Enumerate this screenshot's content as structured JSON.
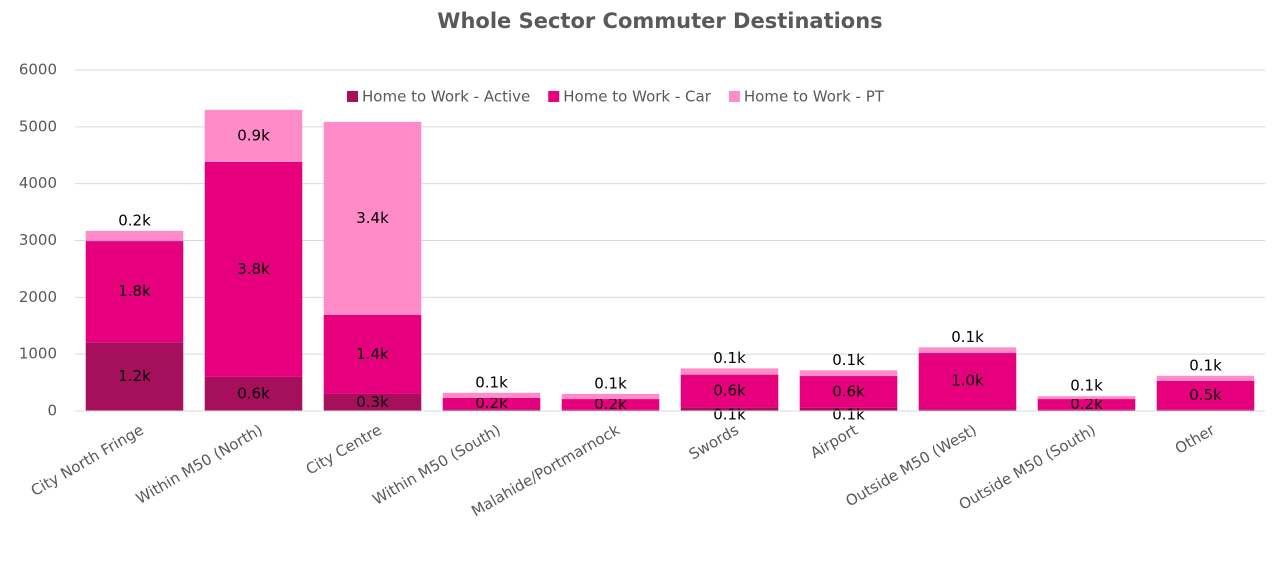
{
  "chart_data": {
    "type": "stacked_bar",
    "title": "Whole Sector Commuter Destinations",
    "categories": [
      "City North Fringe",
      "Within M50 (North)",
      "City Centre",
      "Within M50 (South)",
      "Malahide/Portmarnock",
      "Swords",
      "Airport",
      "Outside M50 (West)",
      "Outside M50 (South)",
      "Other"
    ],
    "series": [
      {
        "name": "Home to Work - Active",
        "color": "#a50f5c",
        "values": [
          1210,
          600,
          300,
          30,
          20,
          60,
          55,
          30,
          20,
          20
        ],
        "value_labels": [
          "1.2k",
          "0.6k",
          "0.3k",
          null,
          null,
          "0.1k",
          "0.1k",
          null,
          null,
          null
        ]
      },
      {
        "name": "Home to Work - Car",
        "color": "#e6007e",
        "values": [
          1780,
          3784,
          1390,
          200,
          190,
          580,
          560,
          990,
          190,
          510
        ],
        "value_labels": [
          "1.8k",
          "3.8k",
          "1.4k",
          "0.2k",
          "0.2k",
          "0.6k",
          "0.6k",
          "1.0k",
          "0.2k",
          "0.5k"
        ]
      },
      {
        "name": "Home to Work - PT",
        "color": "#ff8cc8",
        "values": [
          180,
          915,
          3398,
          90,
          90,
          110,
          100,
          100,
          50,
          90
        ],
        "value_labels": [
          "0.2k",
          "0.9k",
          "3.4k",
          "0.1k",
          "0.1k",
          "0.1k",
          "0.1k",
          "0.1k",
          "0.1k",
          "0.1k"
        ]
      }
    ],
    "ylim": [
      0,
      6000
    ],
    "yticks": [
      0,
      1000,
      2000,
      3000,
      4000,
      5000,
      6000
    ],
    "grid": true,
    "legend": "top"
  }
}
